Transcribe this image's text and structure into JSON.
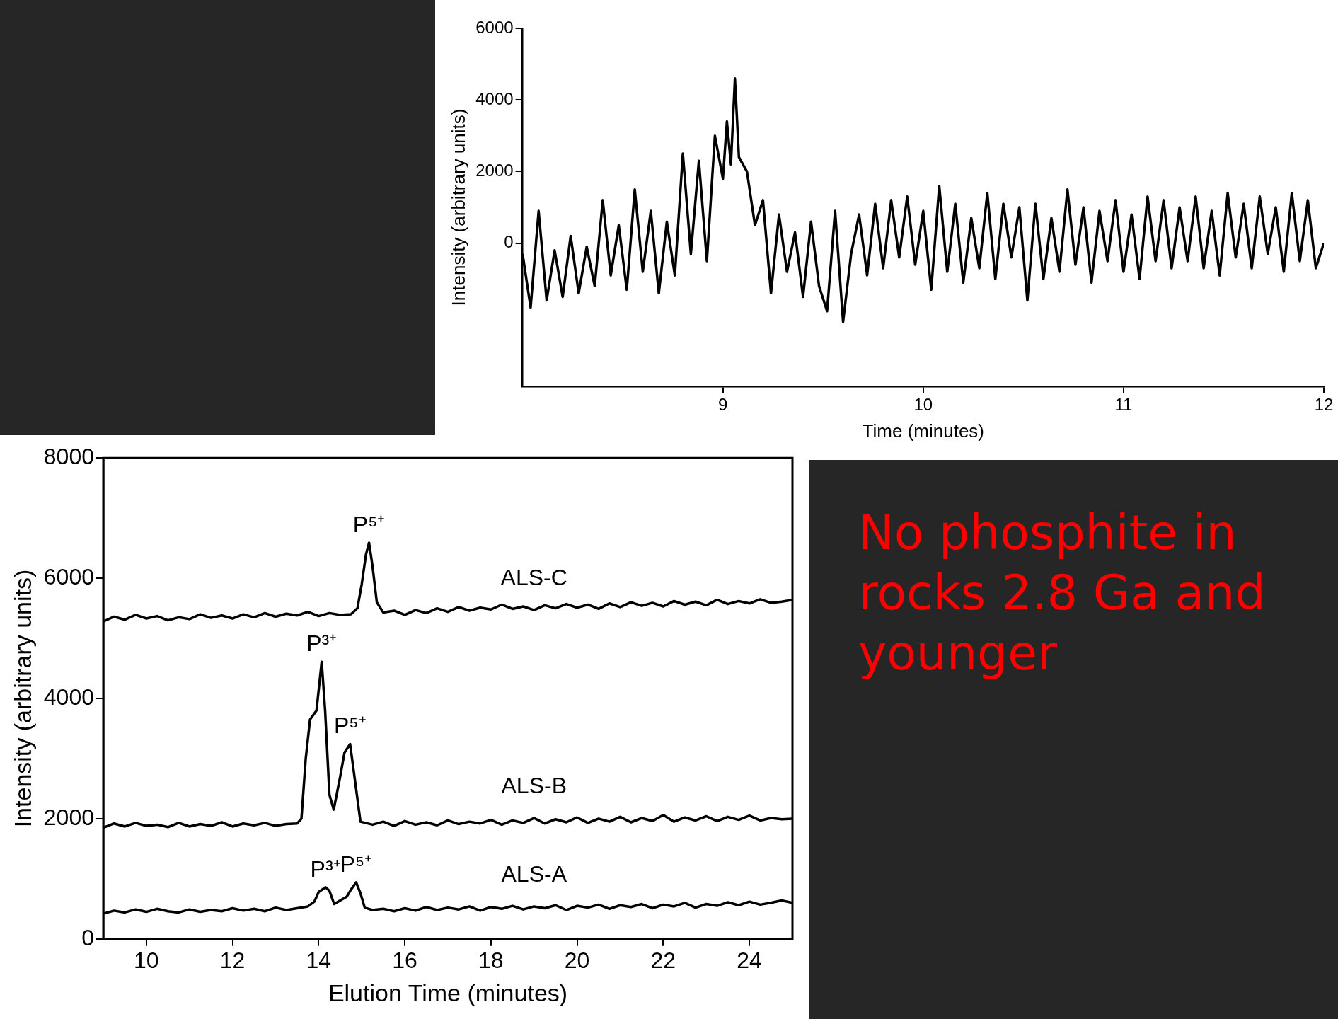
{
  "chart_data": [
    {
      "type": "line",
      "xlabel": "Time (minutes)",
      "ylabel": "Intensity (arbitrary units)",
      "xlim": [
        8,
        12
      ],
      "xticks": [
        9,
        10,
        11,
        12
      ],
      "ylim": [
        -4000,
        6000
      ],
      "yticks": [
        0,
        2000,
        4000,
        6000
      ],
      "annotations": [
        "No phosphite in rocks 2.8 Ga and younger"
      ],
      "series": [
        {
          "color": "#000000",
          "x": [
            8.0,
            8.04,
            8.08,
            8.12,
            8.16,
            8.2,
            8.24,
            8.28,
            8.32,
            8.36,
            8.4,
            8.44,
            8.48,
            8.52,
            8.56,
            8.6,
            8.64,
            8.68,
            8.72,
            8.76,
            8.8,
            8.84,
            8.88,
            8.92,
            8.96,
            9.0,
            9.02,
            9.04,
            9.06,
            9.08,
            9.12,
            9.16,
            9.2,
            9.24,
            9.28,
            9.32,
            9.36,
            9.4,
            9.44,
            9.48,
            9.52,
            9.56,
            9.6,
            9.64,
            9.68,
            9.72,
            9.76,
            9.8,
            9.84,
            9.88,
            9.92,
            9.96,
            10.0,
            10.04,
            10.08,
            10.12,
            10.16,
            10.2,
            10.24,
            10.28,
            10.32,
            10.36,
            10.4,
            10.44,
            10.48,
            10.52,
            10.56,
            10.6,
            10.64,
            10.68,
            10.72,
            10.76,
            10.8,
            10.84,
            10.88,
            10.92,
            10.96,
            11.0,
            11.04,
            11.08,
            11.12,
            11.16,
            11.2,
            11.24,
            11.28,
            11.32,
            11.36,
            11.4,
            11.44,
            11.48,
            11.52,
            11.56,
            11.6,
            11.64,
            11.68,
            11.72,
            11.76,
            11.8,
            11.84,
            11.88,
            11.92,
            11.96,
            12.0
          ],
          "values": [
            -300,
            -1800,
            900,
            -1600,
            -200,
            -1500,
            200,
            -1400,
            -100,
            -1200,
            1200,
            -900,
            500,
            -1300,
            1500,
            -800,
            900,
            -1400,
            600,
            -900,
            2500,
            -300,
            2300,
            -500,
            3000,
            1800,
            3400,
            2200,
            4600,
            2400,
            2000,
            500,
            1200,
            -1400,
            800,
            -800,
            300,
            -1500,
            600,
            -1200,
            -1900,
            900,
            -2200,
            -300,
            800,
            -900,
            1100,
            -700,
            1200,
            -400,
            1300,
            -600,
            900,
            -1300,
            1600,
            -800,
            1100,
            -1100,
            700,
            -700,
            1400,
            -1000,
            1100,
            -400,
            1000,
            -1600,
            1100,
            -1000,
            700,
            -800,
            1500,
            -600,
            1000,
            -1100,
            900,
            -500,
            1200,
            -800,
            800,
            -1000,
            1300,
            -500,
            1200,
            -700,
            1000,
            -500,
            1300,
            -700,
            900,
            -900,
            1400,
            -400,
            1100,
            -700,
            1300,
            -300,
            1000,
            -800,
            1400,
            -500,
            1200,
            -700,
            0
          ]
        }
      ]
    },
    {
      "type": "line",
      "xlabel": "Elution Time (minutes)",
      "ylabel": "Intensity (arbitrary units)",
      "xlim": [
        9,
        25
      ],
      "xticks": [
        10,
        12,
        14,
        16,
        18,
        20,
        22,
        24
      ],
      "ylim": [
        0,
        8000
      ],
      "yticks": [
        0,
        2000,
        4000,
        6000,
        8000
      ],
      "annotations": [
        {
          "text": "P⁵⁺",
          "x": 15.17,
          "y": 6590
        },
        {
          "text": "P³⁺",
          "x": 14.07,
          "y": 4610
        },
        {
          "text": "P⁵⁺",
          "x": 14.73,
          "y": 3240
        },
        {
          "text": "P³⁺",
          "x": 14.16,
          "y": 860
        },
        {
          "text": "P⁵⁺",
          "x": 14.87,
          "y": 940
        }
      ],
      "series": [
        {
          "name": "ALS-C",
          "color": "#000000",
          "x": [
            9,
            9.25,
            9.5,
            9.75,
            10,
            10.25,
            10.5,
            10.75,
            11,
            11.25,
            11.5,
            11.75,
            12,
            12.25,
            12.5,
            12.75,
            13,
            13.25,
            13.5,
            13.75,
            14,
            14.25,
            14.5,
            14.75,
            14.9,
            15.0,
            15.1,
            15.17,
            15.25,
            15.35,
            15.5,
            15.75,
            16,
            16.25,
            16.5,
            16.75,
            17,
            17.25,
            17.5,
            17.75,
            18,
            18.25,
            18.5,
            18.75,
            19,
            19.25,
            19.5,
            19.75,
            20,
            20.25,
            20.5,
            20.75,
            21,
            21.25,
            21.5,
            21.75,
            22,
            22.25,
            22.5,
            22.75,
            23,
            23.25,
            23.5,
            23.75,
            24,
            24.25,
            24.5,
            24.75,
            25
          ],
          "values": [
            5280,
            5360,
            5310,
            5390,
            5330,
            5370,
            5300,
            5350,
            5320,
            5400,
            5340,
            5380,
            5330,
            5400,
            5350,
            5420,
            5360,
            5410,
            5380,
            5440,
            5370,
            5420,
            5390,
            5400,
            5500,
            5900,
            6400,
            6590,
            6200,
            5600,
            5430,
            5460,
            5390,
            5470,
            5420,
            5500,
            5440,
            5520,
            5460,
            5510,
            5480,
            5560,
            5490,
            5530,
            5470,
            5550,
            5500,
            5570,
            5510,
            5560,
            5490,
            5580,
            5520,
            5600,
            5540,
            5590,
            5530,
            5620,
            5560,
            5610,
            5550,
            5640,
            5570,
            5620,
            5580,
            5650,
            5590,
            5610,
            5640
          ]
        },
        {
          "name": "ALS-B",
          "color": "#000000",
          "x": [
            9,
            9.25,
            9.5,
            9.75,
            10,
            10.25,
            10.5,
            10.75,
            11,
            11.25,
            11.5,
            11.75,
            12,
            12.25,
            12.5,
            12.75,
            13,
            13.25,
            13.5,
            13.6,
            13.7,
            13.8,
            13.95,
            14.07,
            14.15,
            14.25,
            14.35,
            14.5,
            14.6,
            14.73,
            14.85,
            14.97,
            15.25,
            15.5,
            15.75,
            16,
            16.25,
            16.5,
            16.75,
            17,
            17.25,
            17.5,
            17.75,
            18,
            18.25,
            18.5,
            18.75,
            19,
            19.25,
            19.5,
            19.75,
            20,
            20.25,
            20.5,
            20.75,
            21,
            21.25,
            21.5,
            21.75,
            22,
            22.25,
            22.5,
            22.75,
            23,
            23.25,
            23.5,
            23.75,
            24,
            24.25,
            24.5,
            24.75,
            25
          ],
          "values": [
            1850,
            1920,
            1870,
            1930,
            1880,
            1900,
            1860,
            1930,
            1870,
            1910,
            1880,
            1940,
            1870,
            1920,
            1890,
            1930,
            1880,
            1910,
            1920,
            2000,
            3000,
            3650,
            3800,
            4610,
            3800,
            2400,
            2150,
            2700,
            3100,
            3240,
            2600,
            1950,
            1900,
            1950,
            1880,
            1960,
            1900,
            1940,
            1890,
            1970,
            1910,
            1950,
            1920,
            1980,
            1900,
            1970,
            1930,
            2010,
            1920,
            1990,
            1940,
            2020,
            1930,
            2000,
            1950,
            2030,
            1940,
            2010,
            1960,
            2060,
            1950,
            2020,
            1970,
            2040,
            1960,
            2030,
            1980,
            2050,
            1970,
            2010,
            1990,
            2000
          ]
        },
        {
          "name": "ALS-A",
          "color": "#000000",
          "x": [
            9,
            9.25,
            9.5,
            9.75,
            10,
            10.25,
            10.5,
            10.75,
            11,
            11.25,
            11.5,
            11.75,
            12,
            12.25,
            12.5,
            12.75,
            13,
            13.25,
            13.5,
            13.75,
            13.9,
            14.0,
            14.16,
            14.25,
            14.36,
            14.5,
            14.65,
            14.75,
            14.87,
            14.97,
            15.07,
            15.25,
            15.5,
            15.75,
            16,
            16.25,
            16.5,
            16.75,
            17,
            17.25,
            17.5,
            17.75,
            18,
            18.25,
            18.5,
            18.75,
            19,
            19.25,
            19.5,
            19.75,
            20,
            20.25,
            20.5,
            20.75,
            21,
            21.25,
            21.5,
            21.75,
            22,
            22.25,
            22.5,
            22.75,
            23,
            23.25,
            23.5,
            23.75,
            24,
            24.25,
            24.5,
            24.75,
            25
          ],
          "values": [
            420,
            470,
            440,
            490,
            450,
            500,
            460,
            440,
            490,
            450,
            480,
            460,
            510,
            470,
            500,
            460,
            520,
            480,
            510,
            540,
            620,
            780,
            860,
            800,
            580,
            640,
            700,
            820,
            940,
            760,
            520,
            480,
            500,
            460,
            510,
            470,
            530,
            480,
            520,
            490,
            540,
            470,
            530,
            500,
            550,
            490,
            540,
            510,
            560,
            480,
            550,
            520,
            570,
            500,
            560,
            530,
            580,
            510,
            570,
            540,
            600,
            520,
            580,
            550,
            610,
            560,
            620,
            570,
            600,
            640,
            600
          ]
        }
      ]
    }
  ]
}
